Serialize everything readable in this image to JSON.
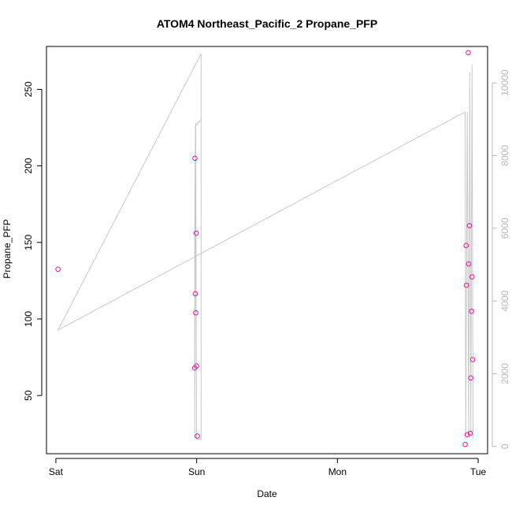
{
  "chart_data": {
    "type": "scatter",
    "title": "ATOM4 Northeast_Pacific_2 Propane_PFP",
    "xlabel": "Date",
    "ylabel": "Propane_PFP",
    "x_axis": {
      "kind": "date",
      "ticks": [
        {
          "label": "Sat",
          "value": "2018-05-05 00:00"
        },
        {
          "label": "Sun",
          "value": "2018-05-06 00:00"
        },
        {
          "label": "Mon",
          "value": "2018-05-07 00:00"
        },
        {
          "label": "Tue",
          "value": "2018-05-08 00:00"
        }
      ],
      "xlim": [
        "2018-05-04 22:24",
        "2018-05-08 01:36"
      ]
    },
    "y_axis": {
      "ticks": [
        50,
        100,
        150,
        200,
        250
      ],
      "ylim": [
        12,
        278
      ]
    },
    "y2_axis": {
      "ticks": [
        0,
        2000,
        4000,
        6000,
        8000,
        10000
      ],
      "ylim": [
        -200,
        11000
      ],
      "color": "#b8b8b8"
    },
    "series": [
      {
        "kind": "points",
        "color": "#e0189a",
        "points": [
          {
            "x": "2018-05-05 00:22",
            "y": 132.5
          },
          {
            "x": "2018-05-05 23:40",
            "y": 68.0
          },
          {
            "x": "2018-05-05 23:43",
            "y": 205.0
          },
          {
            "x": "2018-05-05 23:46",
            "y": 116.5
          },
          {
            "x": "2018-05-05 23:51",
            "y": 104.0
          },
          {
            "x": "2018-05-05 23:56",
            "y": 156.0
          },
          {
            "x": "2018-05-05 23:59",
            "y": 69.3
          },
          {
            "x": "2018-05-06 00:07",
            "y": 23.5
          },
          {
            "x": "2018-05-07 21:46",
            "y": 18.0
          },
          {
            "x": "2018-05-07 21:56",
            "y": 148.0
          },
          {
            "x": "2018-05-07 22:00",
            "y": 122.0
          },
          {
            "x": "2018-05-07 22:08",
            "y": 24.5
          },
          {
            "x": "2018-05-07 22:18",
            "y": 274.0
          },
          {
            "x": "2018-05-07 22:23",
            "y": 136.0
          },
          {
            "x": "2018-05-07 22:31",
            "y": 161.0
          },
          {
            "x": "2018-05-07 22:38",
            "y": 25.3
          },
          {
            "x": "2018-05-07 22:44",
            "y": 61.5
          },
          {
            "x": "2018-05-07 22:52",
            "y": 105.0
          },
          {
            "x": "2018-05-07 22:57",
            "y": 127.5
          },
          {
            "x": "2018-05-07 23:04",
            "y": 73.5
          }
        ]
      },
      {
        "kind": "line",
        "axis": "right",
        "color": "#c8c8c8",
        "points": [
          {
            "x": "2018-05-05 00:22",
            "y": 3200
          },
          {
            "x": "2018-05-06 00:46",
            "y": 10800
          },
          {
            "x": "2018-05-06 00:46",
            "y": 9000
          },
          {
            "x": "2018-05-05 23:48",
            "y": 8800
          },
          {
            "x": "2018-05-05 23:40",
            "y": 6000
          },
          {
            "x": "2018-05-05 23:40",
            "y": 200
          },
          {
            "x": "2018-05-05 23:51",
            "y": 8900
          },
          {
            "x": "2018-05-05 23:59",
            "y": 200
          },
          {
            "x": "2018-05-06 00:46",
            "y": 200
          },
          {
            "x": "2018-05-06 00:46",
            "y": 10800
          },
          {
            "x": "2018-05-05 00:22",
            "y": 3200
          },
          {
            "x": "2018-05-07 21:46",
            "y": 9200
          },
          {
            "x": "2018-05-07 21:52",
            "y": 200
          },
          {
            "x": "2018-05-07 22:08",
            "y": 9200
          },
          {
            "x": "2018-05-07 22:23",
            "y": 300
          },
          {
            "x": "2018-05-07 22:33",
            "y": 10300
          },
          {
            "x": "2018-05-07 22:44",
            "y": 300
          },
          {
            "x": "2018-05-07 22:57",
            "y": 10500
          },
          {
            "x": "2018-05-07 23:08",
            "y": 200
          }
        ]
      }
    ],
    "grid": false,
    "legend": "none"
  }
}
